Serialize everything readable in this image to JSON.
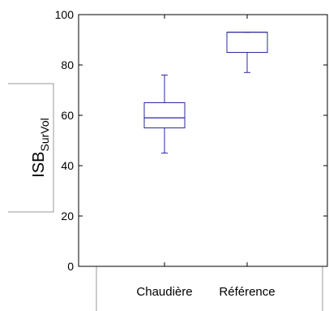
{
  "chart_data": {
    "type": "box",
    "categories": [
      "Chaudière",
      "Référence"
    ],
    "series": [
      {
        "boxes": [
          {
            "category": "Chaudière",
            "whisker_low": 45,
            "q1": 55,
            "median": 59,
            "q3": 65,
            "whisker_high": 76
          },
          {
            "category": "Référence",
            "whisker_low": 77,
            "q1": 85,
            "median": 93,
            "q3": 93,
            "whisker_high": 93
          }
        ]
      }
    ],
    "ylabel": "ISB",
    "ylabel_subscript": "SurVol",
    "xlabel": "",
    "ylim": [
      0,
      100
    ],
    "yticks": [
      0,
      20,
      40,
      60,
      80,
      100
    ],
    "grid": false,
    "colors": {
      "box": "#2a2aa0",
      "axes": "#000000",
      "panel_border": "#808080"
    }
  }
}
